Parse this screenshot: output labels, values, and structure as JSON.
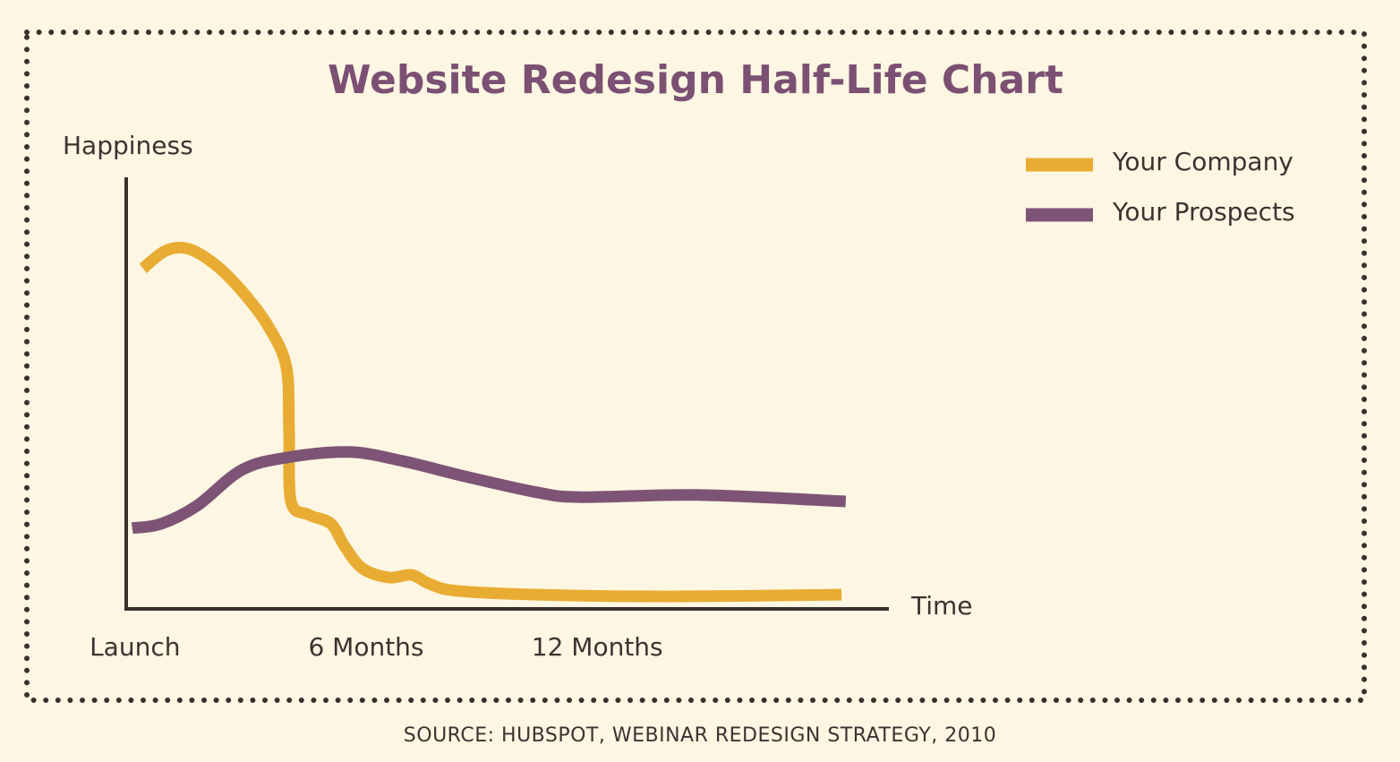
{
  "chart_data": {
    "type": "line",
    "title": "Website Redesign Half-Life Chart",
    "y_label": "Happiness",
    "x_label": "Time",
    "source": "SOURCE: HUBSPOT, WEBINAR REDESIGN STRATEGY, 2010",
    "xlim": [
      -0.25,
      19.5
    ],
    "ylim": [
      0,
      100
    ],
    "xticks": [
      {
        "value": 0,
        "label": "Launch"
      },
      {
        "value": 6,
        "label": "6 Months"
      },
      {
        "value": 12,
        "label": "12 Months"
      }
    ],
    "legend": "top-right",
    "series": [
      {
        "name": "Your Company",
        "color": "#e8ac33",
        "x": [
          0.21,
          0.79,
          1.38,
          2.07,
          2.77,
          3.47,
          3.93,
          4.0,
          4.05,
          4.51,
          5.09,
          5.44,
          5.91,
          6.6,
          7.18,
          7.65,
          8.35,
          10.44,
          13.93,
          18.34
        ],
        "values": [
          79.2,
          83.3,
          83.8,
          80.2,
          74.0,
          65.6,
          56.3,
          41.7,
          25.0,
          21.9,
          19.8,
          14.6,
          9.4,
          7.3,
          7.9,
          5.8,
          4.2,
          3.3,
          2.9,
          3.3
        ]
      },
      {
        "name": "Your Prospects",
        "color": "#7d5476",
        "x": [
          -0.07,
          0.68,
          1.61,
          2.77,
          3.93,
          5.56,
          6.95,
          8.58,
          10.44,
          11.6,
          14.62,
          18.45
        ],
        "values": [
          18.8,
          19.8,
          24.0,
          32.3,
          35.2,
          36.5,
          34.4,
          30.8,
          27.1,
          26.0,
          26.5,
          25.0
        ]
      }
    ]
  }
}
